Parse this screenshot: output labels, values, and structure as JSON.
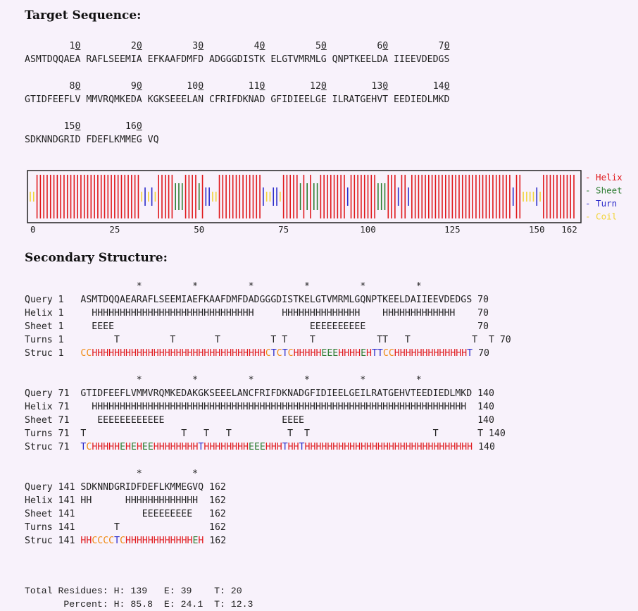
{
  "headings": {
    "target": "Target Sequence:",
    "secondary": "Secondary Structure:"
  },
  "target_sequence": [
    {
      "ticks": [
        10,
        20,
        30,
        40,
        50,
        60,
        70
      ],
      "groups": [
        "ASMTDQQAEA",
        "RAFLSEEMIA",
        "EFKAAFDMFD",
        "ADGGGDISTK",
        "ELGTVMRMLG",
        "QNPTKEELDA",
        "IIEEVDEDGS"
      ]
    },
    {
      "ticks": [
        80,
        90,
        100,
        110,
        120,
        130,
        140
      ],
      "groups": [
        "GTIDFEEFLV",
        "MMVRQMKEDA",
        "KGKSEEELAN",
        "CFRIFDKNAD",
        "GFIDIEELGE",
        "ILRATGEHVT",
        "EEDIEDLMKD"
      ]
    },
    {
      "ticks": [
        150,
        160
      ],
      "groups": [
        "SDKNNDGRID",
        "FDEFLKMMEG",
        "VQ"
      ]
    }
  ],
  "plot": {
    "x_ticks": [
      "0",
      "25",
      "50",
      "75",
      "100",
      "125",
      "150",
      "162"
    ],
    "legend": [
      {
        "label": "- Helix",
        "color": "#e0191c"
      },
      {
        "label": "- Sheet",
        "color": "#2e7d32"
      },
      {
        "label": "- Turn",
        "color": "#2b2bc9"
      },
      {
        "label": "- Coil",
        "color": "#f2d43a"
      }
    ]
  },
  "blocks": [
    {
      "stars": "          *         *         *         *         *         *",
      "query": {
        "label": "Query",
        "start": "1",
        "seq": "ASMTDQQAEARAFLSEEMIAEFKAAFDMFDADGGGDISTKELGTVMRMLGQNPTKEELDAIIEEVDEDGS",
        "end": "70"
      },
      "helix": {
        "label": "Helix",
        "start": "1",
        "seq": "  HHHHHHHHHHHHHHHHHHHHHHHHHHHHH     HHHHHHHHHHHHHH    HHHHHHHHHHHHH",
        "end": "70"
      },
      "sheet": {
        "label": "Sheet",
        "start": "1",
        "seq": "  EEEE                                   EEEEEEEEEE",
        "end": "70"
      },
      "turns": {
        "label": "Turns",
        "start": "1",
        "seq": "      T         T       T         T T    T           TT   T           T  T",
        "end": "70"
      },
      "struc": {
        "label": "Struc",
        "start": "1",
        "seq": "CCHHHHHHHHHHHHHHHHHHHHHHHHHHHHHHHCTCTCHHHHHEEEHHHHEHTTCCHHHHHHHHHHHHHTCCT",
        "end": "70"
      }
    },
    {
      "stars": "          *         *         *         *         *         *",
      "query": {
        "label": "Query",
        "start": "71",
        "seq": "GTIDFEEFLVMMVRQMKEDAKGKSEEELANCFRIFDKNADGFIDIEELGEILRATGEHVTEEDIEDLMKD",
        "end": "140"
      },
      "helix": {
        "label": "Helix",
        "start": "71",
        "seq": "  HHHHHHHHHHHHHHHHHHHHHHHHHHHHHHHHHHHHHHHHHHHHHHHHHHHHHHHHHHHHHHHHHHH",
        "end": "140"
      },
      "sheet": {
        "label": "Sheet",
        "start": "71",
        "seq": "   EEEEEEEEEEEE                     EEEE",
        "end": "140"
      },
      "turns": {
        "label": "Turns",
        "start": "71",
        "seq": "T                 T   T   T          T  T                      T       T",
        "end": "140"
      },
      "struc": {
        "label": "Struc",
        "start": "71",
        "seq": "TCHHHHHEHEHEEHHHHHHHHTHHHHHHHHEEEHHHTHHTHHHHHHHHHHHHHHHHHHHHHHHHHHHHHHT",
        "end": "140"
      }
    },
    {
      "stars": "          *         *",
      "query": {
        "label": "Query",
        "start": "141",
        "seq": "SDKNNDGRIDFDEFLKMMEGVQ",
        "end": "162"
      },
      "helix": {
        "label": "Helix",
        "start": "141",
        "seq": "HH      HHHHHHHHHHHHH",
        "end": "162"
      },
      "sheet": {
        "label": "Sheet",
        "start": "141",
        "seq": "           EEEEEEEEE",
        "end": "162"
      },
      "turns": {
        "label": "Turns",
        "start": "141",
        "seq": "      T",
        "end": "162"
      },
      "struc": {
        "label": "Struc",
        "start": "141",
        "seq": "HHCCCCTCHHHHHHHHHHHHEHC",
        "end": "162"
      }
    }
  ],
  "totals": {
    "line1": "Total Residues: H: 139   E: 39    T: 20",
    "line2": "       Percent: H: 85.8  E: 24.1  T: 12.3"
  },
  "colors": {
    "H": "#e0191c",
    "E": "#2e7d32",
    "T": "#2b2bc9",
    "C": "#f08a12",
    "coil_plot": "#f2d43a"
  }
}
